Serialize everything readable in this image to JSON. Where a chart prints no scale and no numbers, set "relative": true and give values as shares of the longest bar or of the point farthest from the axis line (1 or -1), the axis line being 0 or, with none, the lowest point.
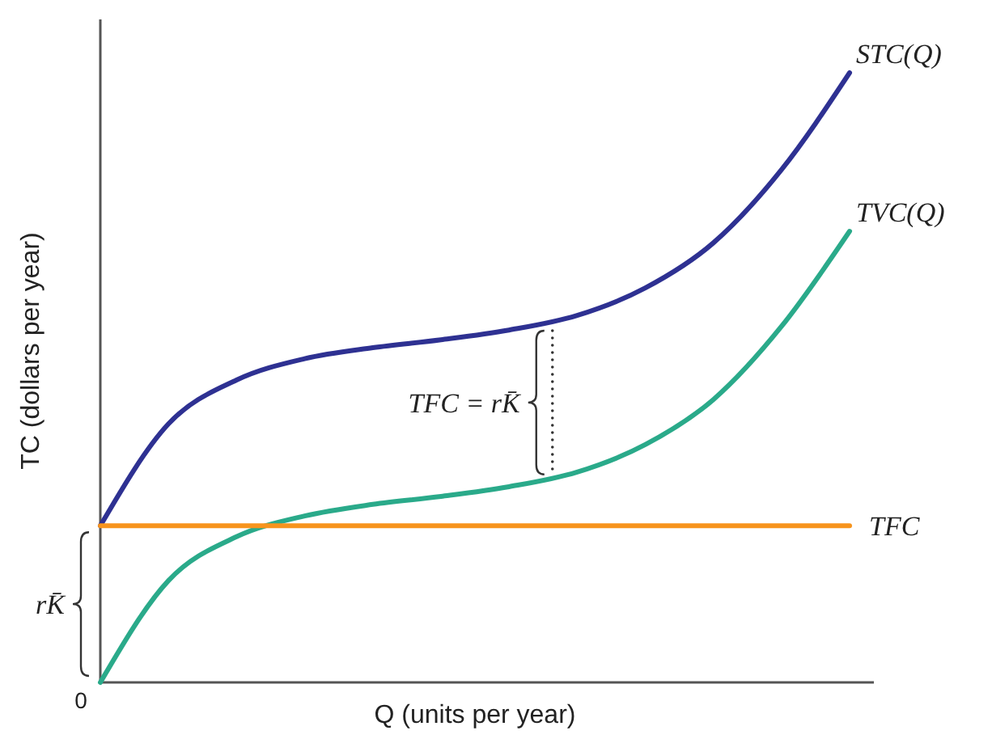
{
  "chart_data": {
    "type": "line",
    "relative": true,
    "xlabel": "Q (units per year)",
    "ylabel": "TC (dollars per year)",
    "categories": [
      null,
      null,
      null,
      null,
      null,
      null,
      null,
      null,
      null,
      null,
      null,
      null
    ],
    "series": [
      {
        "name": "STC(Q)",
        "color": "#2e3192",
        "values": [
          0.257,
          0.424,
          0.496,
          0.531,
          0.549,
          0.562,
          0.578,
          0.602,
          0.647,
          0.721,
          0.841,
          1
        ]
      },
      {
        "name": "TVC(Q)",
        "color": "#2aaa8a",
        "values": [
          0,
          0.167,
          0.239,
          0.273,
          0.292,
          0.305,
          0.321,
          0.345,
          0.39,
          0.464,
          0.584,
          0.74
        ]
      },
      {
        "name": "TFC",
        "color": "#f7941d",
        "values": [
          0.257,
          0.257,
          0.257,
          0.257,
          0.257,
          0.257,
          0.257,
          0.257,
          0.257,
          0.257,
          0.257,
          0.257
        ]
      }
    ],
    "annotations": [
      "0",
      "TFC = rK̄",
      "rK̄"
    ],
    "grid": false,
    "marker": "none",
    "line_style": "solid"
  }
}
